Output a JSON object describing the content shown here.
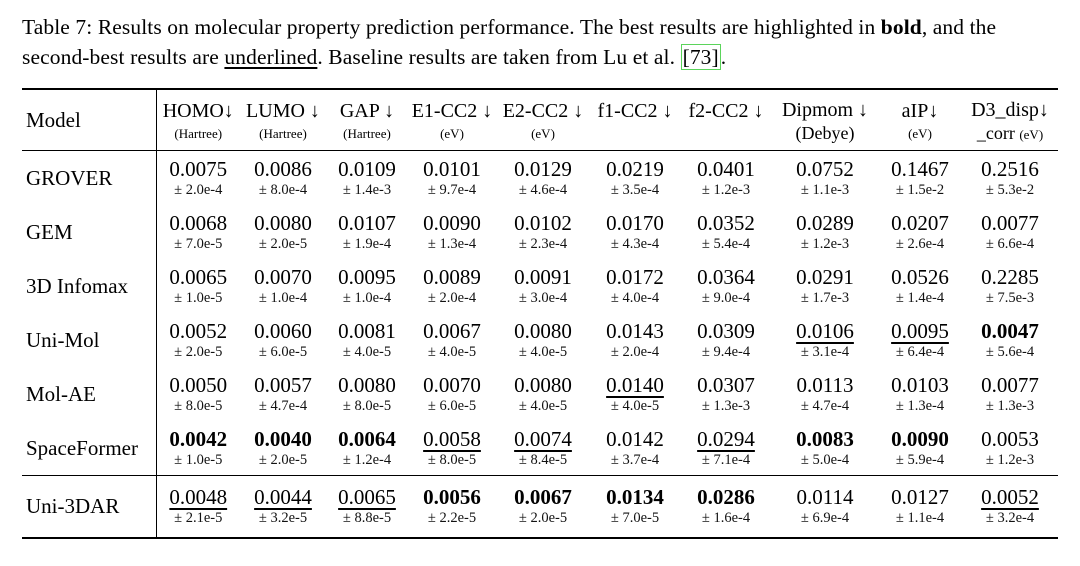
{
  "page": {
    "background": "#ffffff",
    "text_color": "#000000",
    "citation_border_color": "#5bd45b"
  },
  "caption": {
    "part1": "Table 7: Results on molecular property prediction performance. The best results are highlighted in ",
    "bold_word": "bold",
    "part2": ", and the second-best results are ",
    "underlined_word": "underlined",
    "part3": ". Baseline results are taken from Lu et al. ",
    "citation": "[73]",
    "part4": "."
  },
  "table": {
    "model_header": "Model",
    "columns": [
      {
        "label": "HOMO↓",
        "unit_main": "",
        "unit_small": "(Hartree)"
      },
      {
        "label": "LUMO ↓",
        "unit_main": "",
        "unit_small": "(Hartree)"
      },
      {
        "label": "GAP ↓",
        "unit_main": "",
        "unit_small": "(Hartree)"
      },
      {
        "label": "E1-CC2 ↓",
        "unit_main": "",
        "unit_small": "(eV)"
      },
      {
        "label": "E2-CC2 ↓",
        "unit_main": "",
        "unit_small": "(eV)"
      },
      {
        "label": "f1-CC2 ↓",
        "unit_main": "",
        "unit_small": ""
      },
      {
        "label": "f2-CC2 ↓",
        "unit_main": "",
        "unit_small": ""
      },
      {
        "label": "Dipmom ↓",
        "unit_main": "(Debye)",
        "unit_small": ""
      },
      {
        "label": "aIP↓",
        "unit_main": "",
        "unit_small": "(eV)"
      },
      {
        "label": "D3_disp↓",
        "unit_main": "_corr",
        "unit_small": "(eV)"
      }
    ],
    "rows": [
      {
        "model": "GROVER",
        "section": "main",
        "cells": [
          {
            "v": "0.0075",
            "s": "± 2.0e-4",
            "style": "normal"
          },
          {
            "v": "0.0086",
            "s": "± 8.0e-4",
            "style": "normal"
          },
          {
            "v": "0.0109",
            "s": "± 1.4e-3",
            "style": "normal"
          },
          {
            "v": "0.0101",
            "s": "± 9.7e-4",
            "style": "normal"
          },
          {
            "v": "0.0129",
            "s": "± 4.6e-4",
            "style": "normal"
          },
          {
            "v": "0.0219",
            "s": "± 3.5e-4",
            "style": "normal"
          },
          {
            "v": "0.0401",
            "s": "± 1.2e-3",
            "style": "normal"
          },
          {
            "v": "0.0752",
            "s": "± 1.1e-3",
            "style": "normal"
          },
          {
            "v": "0.1467",
            "s": "± 1.5e-2",
            "style": "normal"
          },
          {
            "v": "0.2516",
            "s": "± 5.3e-2",
            "style": "normal"
          }
        ]
      },
      {
        "model": "GEM",
        "section": "main",
        "cells": [
          {
            "v": "0.0068",
            "s": "± 7.0e-5",
            "style": "normal"
          },
          {
            "v": "0.0080",
            "s": "± 2.0e-5",
            "style": "normal"
          },
          {
            "v": "0.0107",
            "s": "± 1.9e-4",
            "style": "normal"
          },
          {
            "v": "0.0090",
            "s": "± 1.3e-4",
            "style": "normal"
          },
          {
            "v": "0.0102",
            "s": "± 2.3e-4",
            "style": "normal"
          },
          {
            "v": "0.0170",
            "s": "± 4.3e-4",
            "style": "normal"
          },
          {
            "v": "0.0352",
            "s": "± 5.4e-4",
            "style": "normal"
          },
          {
            "v": "0.0289",
            "s": "± 1.2e-3",
            "style": "normal"
          },
          {
            "v": "0.0207",
            "s": "± 2.6e-4",
            "style": "normal"
          },
          {
            "v": "0.0077",
            "s": "± 6.6e-4",
            "style": "normal"
          }
        ]
      },
      {
        "model": "3D Infomax",
        "section": "main",
        "cells": [
          {
            "v": "0.0065",
            "s": "± 1.0e-5",
            "style": "normal"
          },
          {
            "v": "0.0070",
            "s": "± 1.0e-4",
            "style": "normal"
          },
          {
            "v": "0.0095",
            "s": "± 1.0e-4",
            "style": "normal"
          },
          {
            "v": "0.0089",
            "s": "± 2.0e-4",
            "style": "normal"
          },
          {
            "v": "0.0091",
            "s": "± 3.0e-4",
            "style": "normal"
          },
          {
            "v": "0.0172",
            "s": "± 4.0e-4",
            "style": "normal"
          },
          {
            "v": "0.0364",
            "s": "± 9.0e-4",
            "style": "normal"
          },
          {
            "v": "0.0291",
            "s": "± 1.7e-3",
            "style": "normal"
          },
          {
            "v": "0.0526",
            "s": "± 1.4e-4",
            "style": "normal"
          },
          {
            "v": "0.2285",
            "s": "± 7.5e-3",
            "style": "normal"
          }
        ]
      },
      {
        "model": "Uni-Mol",
        "section": "main",
        "cells": [
          {
            "v": "0.0052",
            "s": "± 2.0e-5",
            "style": "normal"
          },
          {
            "v": "0.0060",
            "s": "± 6.0e-5",
            "style": "normal"
          },
          {
            "v": "0.0081",
            "s": "± 4.0e-5",
            "style": "normal"
          },
          {
            "v": "0.0067",
            "s": "± 4.0e-5",
            "style": "normal"
          },
          {
            "v": "0.0080",
            "s": "± 4.0e-5",
            "style": "normal"
          },
          {
            "v": "0.0143",
            "s": "± 2.0e-4",
            "style": "normal"
          },
          {
            "v": "0.0309",
            "s": "± 9.4e-4",
            "style": "normal"
          },
          {
            "v": "0.0106",
            "s": "± 3.1e-4",
            "style": "underline"
          },
          {
            "v": "0.0095",
            "s": "± 6.4e-4",
            "style": "underline"
          },
          {
            "v": "0.0047",
            "s": "± 5.6e-4",
            "style": "bold"
          }
        ]
      },
      {
        "model": "Mol-AE",
        "section": "main",
        "cells": [
          {
            "v": "0.0050",
            "s": "± 8.0e-5",
            "style": "normal"
          },
          {
            "v": "0.0057",
            "s": "± 4.7e-4",
            "style": "normal"
          },
          {
            "v": "0.0080",
            "s": "± 8.0e-5",
            "style": "normal"
          },
          {
            "v": "0.0070",
            "s": "± 6.0e-5",
            "style": "normal"
          },
          {
            "v": "0.0080",
            "s": "± 4.0e-5",
            "style": "normal"
          },
          {
            "v": "0.0140",
            "s": "± 4.0e-5",
            "style": "underline"
          },
          {
            "v": "0.0307",
            "s": "± 1.3e-3",
            "style": "normal"
          },
          {
            "v": "0.0113",
            "s": "± 4.7e-4",
            "style": "normal"
          },
          {
            "v": "0.0103",
            "s": "± 1.3e-4",
            "style": "normal"
          },
          {
            "v": "0.0077",
            "s": "± 1.3e-3",
            "style": "normal"
          }
        ]
      },
      {
        "model": "SpaceFormer",
        "section": "main",
        "cells": [
          {
            "v": "0.0042",
            "s": "± 1.0e-5",
            "style": "bold"
          },
          {
            "v": "0.0040",
            "s": "± 2.0e-5",
            "style": "bold"
          },
          {
            "v": "0.0064",
            "s": "± 1.2e-4",
            "style": "bold"
          },
          {
            "v": "0.0058",
            "s": "± 8.0e-5",
            "style": "underline"
          },
          {
            "v": "0.0074",
            "s": "± 8.4e-5",
            "style": "underline"
          },
          {
            "v": "0.0142",
            "s": "± 3.7e-4",
            "style": "normal"
          },
          {
            "v": "0.0294",
            "s": "± 7.1e-4",
            "style": "underline"
          },
          {
            "v": "0.0083",
            "s": "± 5.0e-4",
            "style": "bold"
          },
          {
            "v": "0.0090",
            "s": "± 5.9e-4",
            "style": "bold"
          },
          {
            "v": "0.0053",
            "s": "± 1.2e-3",
            "style": "normal"
          }
        ]
      },
      {
        "model": "Uni-3DAR",
        "section": "last",
        "cells": [
          {
            "v": "0.0048",
            "s": "± 2.1e-5",
            "style": "underline"
          },
          {
            "v": "0.0044",
            "s": "± 3.2e-5",
            "style": "underline"
          },
          {
            "v": "0.0065",
            "s": "± 8.8e-5",
            "style": "underline"
          },
          {
            "v": "0.0056",
            "s": "± 2.2e-5",
            "style": "bold"
          },
          {
            "v": "0.0067",
            "s": "± 2.0e-5",
            "style": "bold"
          },
          {
            "v": "0.0134",
            "s": "± 7.0e-5",
            "style": "bold"
          },
          {
            "v": "0.0286",
            "s": "± 1.6e-4",
            "style": "bold"
          },
          {
            "v": "0.0114",
            "s": "± 6.9e-4",
            "style": "normal"
          },
          {
            "v": "0.0127",
            "s": "± 1.1e-4",
            "style": "normal"
          },
          {
            "v": "0.0052",
            "s": "± 3.2e-4",
            "style": "underline"
          }
        ]
      }
    ]
  }
}
